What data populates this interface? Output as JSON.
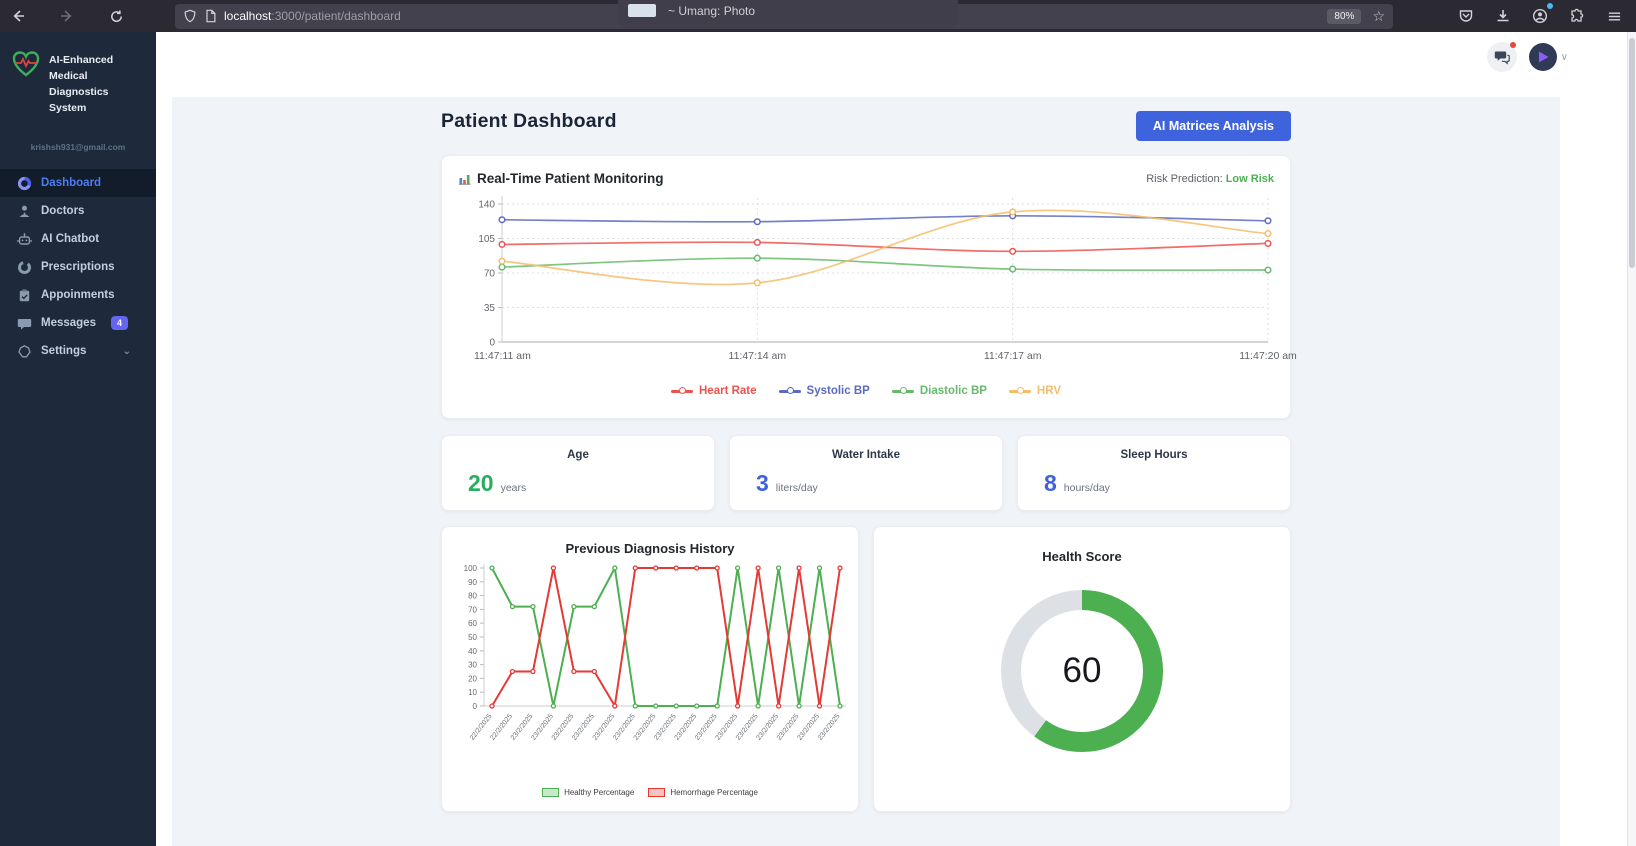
{
  "browser": {
    "url_host": "localhost",
    "url_path": ":3000/patient/dashboard",
    "zoom_badge": "80%",
    "popup_text": "~ Umang: Photo"
  },
  "sidebar": {
    "brand": "AI-Enhanced Medical Diagnostics System",
    "email": "krishsh931@gmail.com",
    "items": [
      {
        "label": "Dashboard",
        "active": true
      },
      {
        "label": "Doctors"
      },
      {
        "label": "AI Chatbot"
      },
      {
        "label": "Prescriptions"
      },
      {
        "label": "Appoinments"
      },
      {
        "label": "Messages",
        "badge": "4"
      },
      {
        "label": "Settings"
      }
    ]
  },
  "header": {
    "title": "Patient Dashboard",
    "action_button": "AI Matrices Analysis"
  },
  "monitoring": {
    "title": "Real-Time Patient Monitoring",
    "risk_label": "Risk Prediction:",
    "risk_value": "Low Risk",
    "risk_color": "#4caf50"
  },
  "stats": [
    {
      "title": "Age",
      "value": "20",
      "unit": "years",
      "color": "#27ae60"
    },
    {
      "title": "Water Intake",
      "value": "3",
      "unit": "liters/day",
      "color": "#3e63dd"
    },
    {
      "title": "Sleep Hours",
      "value": "8",
      "unit": "hours/day",
      "color": "#3e63dd"
    }
  ],
  "colors": {
    "primary_button": "#3e63dd",
    "sidebar_bg": "#1e2a3b",
    "active_nav": "#4d7df2",
    "badge": "#6466f1",
    "page_bg": "#f0f3f7"
  },
  "chart_data": [
    {
      "type": "line",
      "title": "Real-Time Patient Monitoring",
      "categories": [
        "11:47:11 am",
        "11:47:14 am",
        "11:47:17 am",
        "11:47:20 am"
      ],
      "series": [
        {
          "name": "Heart Rate",
          "color": "#ef5350",
          "values": [
            99,
            101,
            92,
            100
          ]
        },
        {
          "name": "Systolic BP",
          "color": "#5c6bc0",
          "values": [
            124,
            122,
            128,
            123
          ]
        },
        {
          "name": "Diastolic BP",
          "color": "#66bb6a",
          "values": [
            76,
            85,
            74,
            73
          ]
        },
        {
          "name": "HRV",
          "color": "#f5bd6a",
          "values": [
            82,
            60,
            132,
            110
          ]
        }
      ],
      "ylim": [
        0,
        140
      ],
      "yticks": [
        0,
        35,
        70,
        105,
        140
      ],
      "grid": "dotted",
      "legend_position": "bottom",
      "curve": "smooth"
    },
    {
      "type": "line",
      "title": "Previous Diagnosis History",
      "categories": [
        "22/2/2025",
        "22/2/2025",
        "23/2/2025",
        "23/2/2025",
        "23/2/2025",
        "23/2/2025",
        "23/2/2025",
        "23/2/2025",
        "23/2/2025",
        "23/2/2025",
        "23/2/2025",
        "23/2/2025",
        "23/2/2025",
        "23/2/2025",
        "23/2/2025",
        "23/2/2025",
        "23/2/2025",
        "23/2/2025"
      ],
      "series": [
        {
          "name": "Healthy Percentage",
          "color": "#4caf50",
          "values": [
            100,
            72,
            72,
            0,
            72,
            72,
            100,
            0,
            0,
            0,
            0,
            0,
            100,
            0,
            100,
            0,
            100,
            0
          ]
        },
        {
          "name": "Hemorrhage Percentage",
          "color": "#e53935",
          "values": [
            0,
            25,
            25,
            100,
            25,
            25,
            0,
            100,
            100,
            100,
            100,
            100,
            0,
            100,
            0,
            100,
            0,
            100
          ]
        }
      ],
      "ylim": [
        0,
        100
      ],
      "yticks": [
        0,
        10,
        20,
        30,
        40,
        50,
        60,
        70,
        80,
        90,
        100
      ],
      "grid": "off",
      "legend_position": "bottom",
      "curve": "straight"
    },
    {
      "type": "donut",
      "title": "Health Score",
      "value": 60,
      "max": 100,
      "arc_color": "#4caf50",
      "track_color": "#dde1e6"
    }
  ]
}
